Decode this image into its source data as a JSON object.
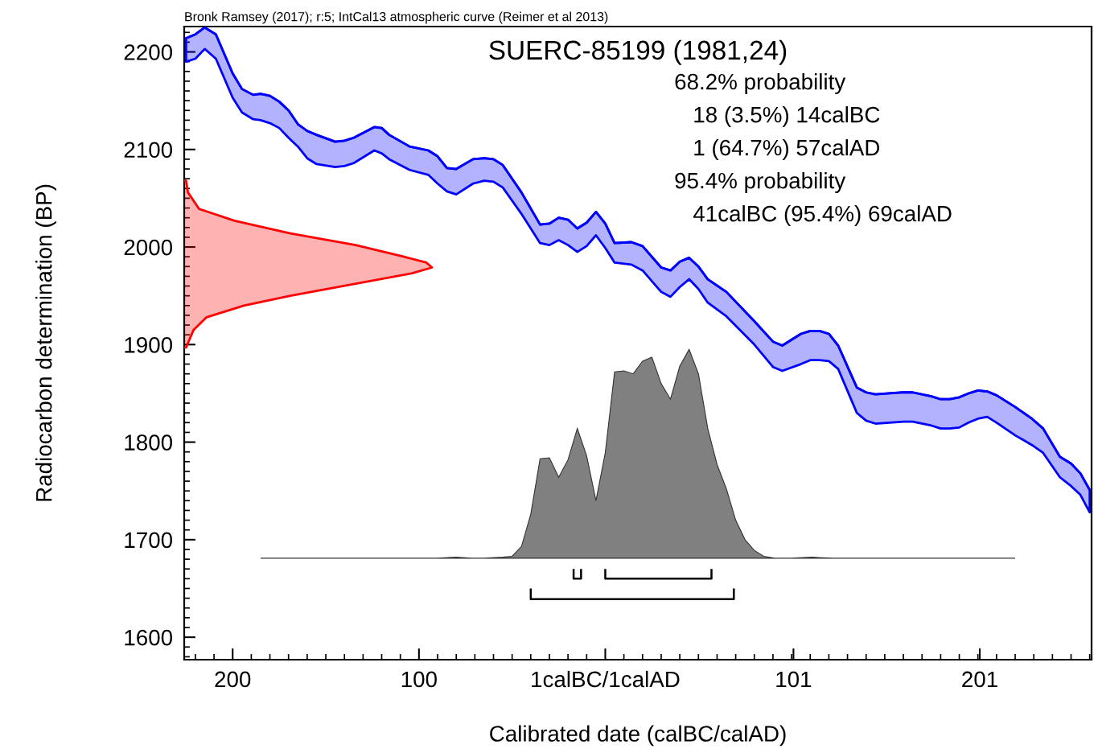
{
  "chart_data": {
    "type": "area",
    "title": "SUERC-85199 (1981,24)",
    "xlabel": "Calibrated date (calBC/calAD)",
    "ylabel": "Radiocarbon determination (BP)",
    "xlim": [
      -226,
      261
    ],
    "ylim": [
      1577,
      2226
    ],
    "xticks": [
      {
        "value": -200,
        "label": "200"
      },
      {
        "value": -100,
        "label": "100"
      },
      {
        "value": 0,
        "label": "1calBC/1calAD"
      },
      101,
      201
    ],
    "yticks": [
      1600,
      1700,
      1800,
      1900,
      2000,
      2100,
      2200
    ],
    "annotations": [
      "Bronk Ramsey (2017); r:5; IntCal13 atmospheric curve (Reimer et al 2013)",
      "68.2% probability",
      "   18 (3.5%) 14calBC",
      "   1 (64.7%) 57calAD",
      "95.4% probability",
      "   41calBC (95.4%) 69calAD"
    ],
    "series": [
      {
        "type": "line",
        "color": "#0000ff",
        "values": [
          2214,
          2218,
          2225,
          2218,
          2178,
          2162,
          2156,
          2157,
          2155,
          2149,
          2140,
          2126,
          2119,
          2115,
          2108,
          2109,
          2112,
          2123,
          2122,
          2115,
          2103,
          2099,
          2093,
          2081,
          2080,
          2090,
          2091,
          2090,
          2084,
          2056,
          2023,
          2024,
          2030,
          2028,
          2019,
          2025,
          2036,
          2024,
          2004,
          2005,
          2001,
          1979,
          1976,
          1985,
          1989,
          1980,
          1967,
          1954,
          1924,
          1903,
          1899,
          1911,
          1914,
          1914,
          1911,
          1899,
          1856,
          1851,
          1849,
          1851,
          1851,
          1847,
          1844,
          1844,
          1846,
          1850,
          1853,
          1852,
          1848,
          1836,
          1824,
          1814,
          1785,
          1778,
          1768,
          1751
        ],
        "x": [
          -225,
          -220,
          -215,
          -209,
          -200,
          -195,
          -189,
          -185,
          -180,
          -175,
          -170,
          -165,
          -160,
          -155,
          -145,
          -140,
          -135,
          -124,
          -120,
          -116,
          -105,
          -95,
          -90,
          -85,
          -80,
          -71,
          -65,
          -60,
          -55,
          -45,
          -35,
          -30,
          -25,
          -20,
          -15,
          -10,
          -5,
          0,
          5,
          14,
          20,
          30,
          35,
          40,
          45,
          50,
          55,
          65,
          80,
          90,
          95,
          105,
          110,
          115,
          120,
          125,
          135,
          140,
          145,
          160,
          165,
          175,
          180,
          185,
          190,
          195,
          200,
          205,
          210,
          220,
          229,
          235,
          244,
          250,
          255,
          260
        ],
        "upper": [
          2214,
          2218,
          2225,
          2218,
          2178,
          2162,
          2156,
          2157,
          2155,
          2149,
          2140,
          2126,
          2119,
          2115,
          2108,
          2109,
          2112,
          2123,
          2122,
          2115,
          2103,
          2099,
          2093,
          2081,
          2080,
          2090,
          2091,
          2090,
          2084,
          2056,
          2023,
          2024,
          2030,
          2028,
          2019,
          2025,
          2036,
          2024,
          2004,
          2005,
          2001,
          1979,
          1976,
          1985,
          1989,
          1980,
          1967,
          1954,
          1924,
          1903,
          1899,
          1911,
          1914,
          1914,
          1911,
          1899,
          1856,
          1851,
          1849,
          1851,
          1851,
          1847,
          1844,
          1844,
          1846,
          1850,
          1853,
          1852,
          1848,
          1836,
          1824,
          1814,
          1785,
          1778,
          1768,
          1751
        ],
        "lower": [
          2190,
          2193,
          2203,
          2193,
          2153,
          2138,
          2131,
          2130,
          2127,
          2122,
          2112,
          2103,
          2091,
          2085,
          2082,
          2083,
          2086,
          2099,
          2096,
          2090,
          2079,
          2074,
          2065,
          2057,
          2054,
          2065,
          2068,
          2067,
          2061,
          2034,
          2004,
          2002,
          2007,
          2002,
          1995,
          2001,
          2012,
          1999,
          1984,
          1982,
          1976,
          1954,
          1949,
          1959,
          1967,
          1957,
          1943,
          1929,
          1900,
          1877,
          1873,
          1880,
          1884,
          1884,
          1883,
          1875,
          1830,
          1822,
          1819,
          1821,
          1821,
          1817,
          1814,
          1814,
          1815,
          1820,
          1824,
          1826,
          1820,
          1807,
          1797,
          1789,
          1764,
          1755,
          1746,
          1728
        ]
      },
      {
        "color": "#ff0000",
        "x": [
          -226,
          -225,
          -224,
          -218,
          -199,
          -169,
          -134,
          -108,
          -96,
          -93,
          -104,
          -138,
          -169,
          -194,
          -214,
          -221,
          -225,
          -226
        ],
        "values": [
          2068,
          2068,
          2056,
          2039,
          2027,
          2014,
          2002,
          1990,
          1984,
          1979,
          1973,
          1961,
          1950,
          1940,
          1928,
          1915,
          1897,
          1897
        ]
      },
      {
        "color": "#808080",
        "x": [
          -185,
          -90,
          -80,
          -72,
          -65,
          -55,
          -50,
          -45,
          -40,
          -35,
          -30,
          -25,
          -20,
          -15,
          -10,
          -5,
          0,
          5,
          10,
          15,
          20,
          25,
          30,
          35,
          40,
          45,
          50,
          55,
          60,
          65,
          70,
          75,
          80,
          85,
          91,
          100,
          111,
          122,
          220
        ],
        "values": [
          1681,
          1681,
          1682,
          1681,
          1681,
          1682,
          1683,
          1693,
          1726,
          1783,
          1784,
          1764,
          1782,
          1814,
          1786,
          1740,
          1789,
          1872,
          1873,
          1870,
          1883,
          1887,
          1860,
          1844,
          1878,
          1895,
          1870,
          1814,
          1777,
          1752,
          1720,
          1700,
          1689,
          1683,
          1681,
          1681,
          1682,
          1681,
          1681
        ]
      },
      {
        "type": "line",
        "color": "#000000",
        "x": [
          -17,
          -17,
          -13,
          -13
        ],
        "values": [
          1670,
          1660,
          1660,
          1670
        ]
      },
      {
        "type": "line",
        "color": "#000000",
        "x": [
          0,
          0,
          57,
          57
        ],
        "values": [
          1670,
          1660,
          1660,
          1670
        ]
      },
      {
        "type": "line",
        "color": "#000000",
        "x": [
          -40,
          -40,
          69,
          69
        ],
        "values": [
          1650,
          1639,
          1639,
          1650
        ]
      }
    ]
  }
}
